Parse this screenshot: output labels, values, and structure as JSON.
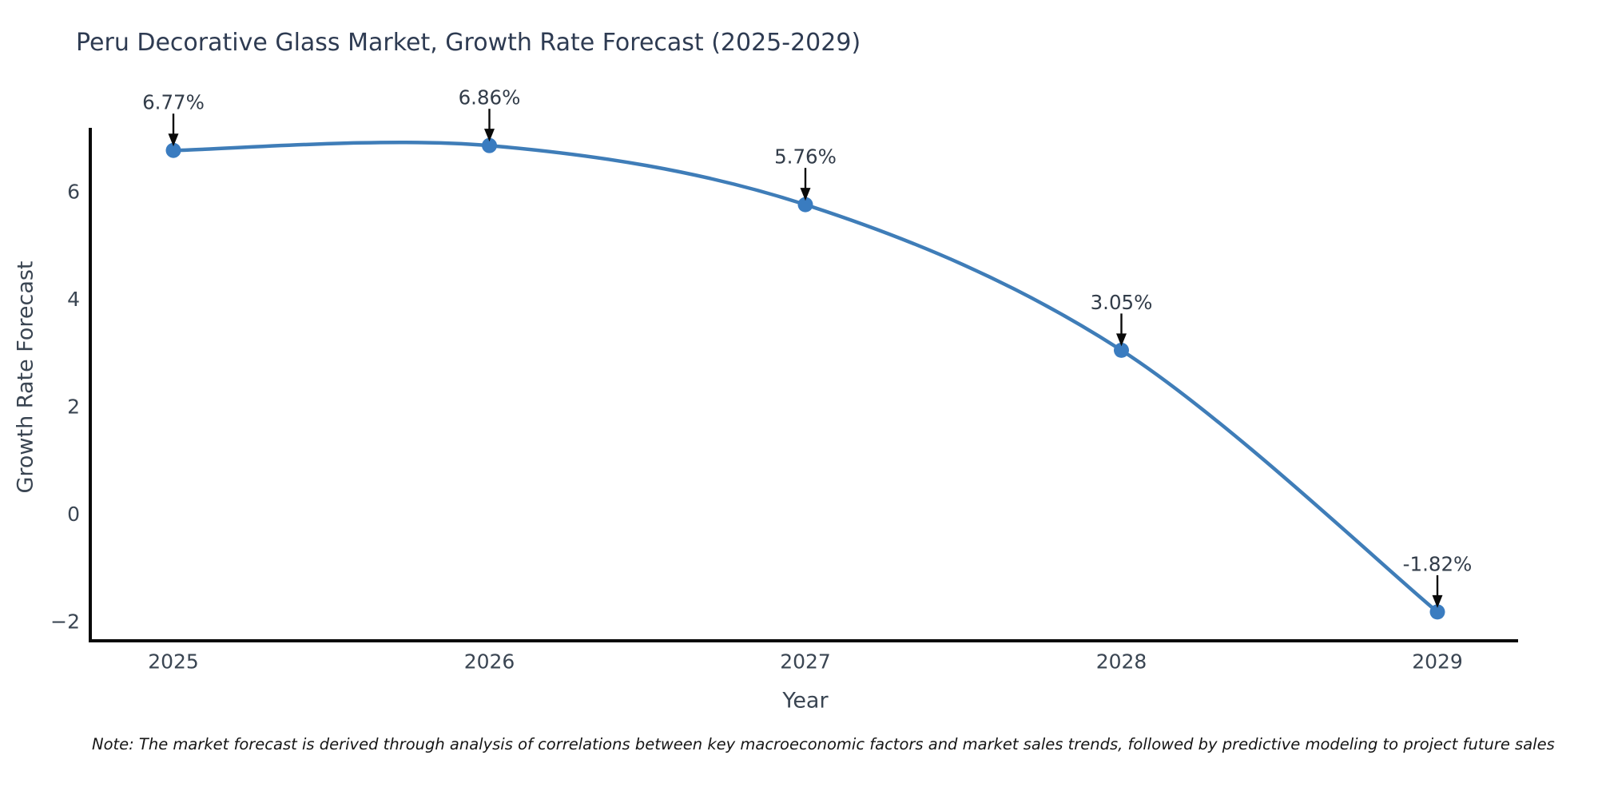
{
  "chart_data": {
    "type": "line",
    "title": "Peru Decorative Glass Market, Growth Rate Forecast (2025-2029)",
    "xlabel": "Year",
    "ylabel": "Growth Rate Forecast",
    "categories": [
      "2025",
      "2026",
      "2027",
      "2028",
      "2029"
    ],
    "values": [
      6.77,
      6.86,
      5.76,
      3.05,
      -1.82
    ],
    "point_labels": [
      "6.77%",
      "6.86%",
      "5.76%",
      "3.05%",
      "-1.82%"
    ],
    "y_ticks": [
      6,
      4,
      2,
      0,
      -2
    ],
    "y_tick_labels": [
      "6",
      "4",
      "2",
      "0",
      "−2"
    ],
    "ylim": [
      -2.35,
      7.2
    ],
    "grid": false,
    "legend": "none",
    "marker": "circle",
    "colors": {
      "line": "#3f7db8",
      "marker": "#3a7cc0",
      "axis": "#0a0a0a",
      "tick_label": "#3a4552",
      "title": "#2e3b52",
      "annotation_text": "#323c49",
      "annotation_arrow": "#0a0a0a",
      "background": "#ffffff",
      "note_text": "#161616"
    }
  },
  "note": "Note: The market forecast is derived through analysis of correlations between key macroeconomic factors and market sales trends, followed by predictive modeling to project future sales"
}
